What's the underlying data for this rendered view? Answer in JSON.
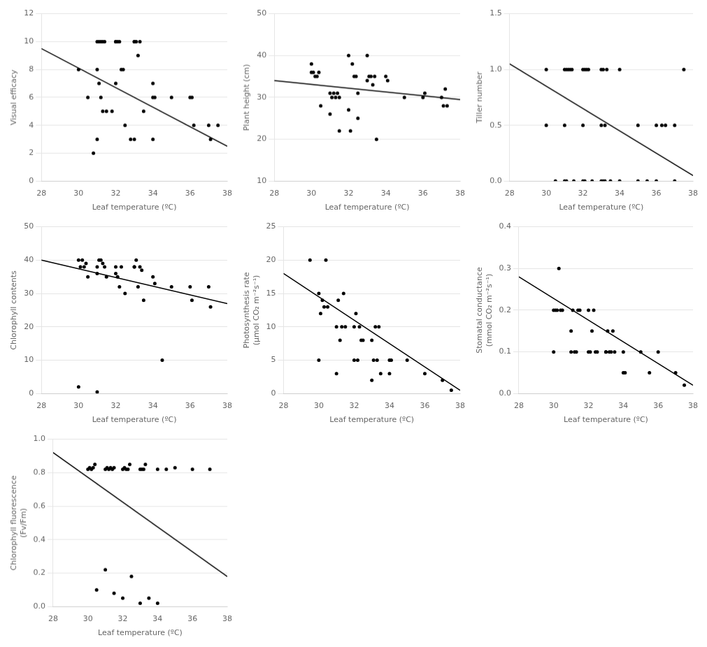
{
  "chart_data": [
    {
      "type": "scatter",
      "xlabel": "Leaf temperature (ºC)",
      "ylabel": "Visual efficacy",
      "xlim": [
        28,
        38
      ],
      "ylim": [
        0,
        12
      ],
      "xticks": [
        28,
        30,
        32,
        34,
        36,
        38
      ],
      "yticks": [
        0,
        2,
        4,
        6,
        8,
        10,
        12
      ],
      "grid": "y",
      "series": [
        {
          "type": "scatter",
          "color": "#000000",
          "x": [
            30.0,
            31.0,
            31.1,
            31.2,
            31.3,
            31.4,
            31.0,
            31.1,
            31.2,
            31.3,
            32.0,
            32.0,
            32.1,
            32.2,
            32.3,
            32.4,
            33.0,
            33.0,
            33.1,
            33.2,
            33.3,
            34.0,
            34.0,
            34.1,
            35.0,
            36.0,
            36.1,
            36.2,
            37.0,
            37.1,
            37.5,
            30.5,
            31.5,
            32.5,
            33.5,
            31.0,
            32.0,
            33.0,
            34.0,
            30.8,
            31.8,
            32.8
          ],
          "values": [
            8.0,
            10.0,
            10.0,
            10.0,
            10.0,
            10.0,
            8.0,
            7.0,
            6.0,
            5.0,
            10.0,
            10.0,
            10.0,
            10.0,
            8.0,
            8.0,
            10.0,
            10.0,
            10.0,
            9.0,
            10.0,
            6.0,
            7.0,
            6.0,
            6.0,
            6.0,
            6.0,
            4.0,
            4.0,
            3.0,
            4.0,
            6.0,
            5.0,
            4.0,
            5.0,
            3.0,
            7.0,
            3.0,
            3.0,
            2.0,
            5.0,
            3.0
          ]
        },
        {
          "type": "line",
          "color": "#000000",
          "x": [
            28,
            38
          ],
          "values": [
            9.5,
            2.5
          ]
        }
      ]
    },
    {
      "type": "scatter",
      "xlabel": "Leaf temperature (ºC)",
      "ylabel": "Plant height (cm)",
      "xlim": [
        28,
        38
      ],
      "ylim": [
        10,
        50
      ],
      "xticks": [
        28,
        30,
        32,
        34,
        36,
        38
      ],
      "yticks": [
        10,
        20,
        30,
        40,
        50
      ],
      "grid": "y",
      "series": [
        {
          "type": "scatter",
          "color": "#000000",
          "x": [
            30.0,
            30.1,
            30.2,
            30.3,
            30.4,
            30.5,
            31.0,
            31.1,
            31.2,
            31.3,
            31.4,
            31.5,
            32.0,
            32.1,
            32.2,
            32.3,
            32.4,
            32.5,
            33.0,
            33.1,
            33.2,
            33.3,
            33.4,
            34.0,
            34.1,
            35.0,
            36.0,
            36.1,
            37.0,
            37.1,
            37.2,
            37.3,
            31.0,
            31.5,
            32.5,
            33.0,
            33.5,
            30.0,
            32.0
          ],
          "values": [
            36.0,
            36.0,
            35.0,
            35.0,
            36.0,
            28.0,
            31.0,
            30.0,
            31.0,
            30.0,
            31.0,
            22.0,
            40.0,
            22.0,
            38.0,
            35.0,
            35.0,
            31.0,
            40.0,
            35.0,
            35.0,
            33.0,
            35.0,
            35.0,
            34.0,
            30.0,
            30.0,
            31.0,
            30.0,
            28.0,
            32.0,
            28.0,
            26.0,
            30.0,
            25.0,
            34.0,
            20.0,
            38.0,
            27.0
          ]
        },
        {
          "type": "line",
          "color": "#000000",
          "x": [
            28,
            38
          ],
          "values": [
            34.0,
            29.5
          ]
        }
      ]
    },
    {
      "type": "scatter",
      "xlabel": "Leaf temperature (ºC)",
      "ylabel": "Tiller number",
      "xlim": [
        28,
        38
      ],
      "ylim": [
        0,
        1.5
      ],
      "xticks": [
        28,
        30,
        32,
        34,
        36,
        38
      ],
      "yticks": [
        {
          "value": 0,
          "label": "0.0"
        },
        0.5,
        {
          "value": 1,
          "label": "1.0"
        },
        1.5
      ],
      "grid": "y",
      "series": [
        {
          "type": "scatter",
          "color": "#000000",
          "x": [
            30.0,
            31.0,
            31.1,
            31.2,
            31.3,
            31.4,
            32.0,
            32.1,
            32.2,
            32.3,
            33.0,
            33.1,
            33.2,
            33.3,
            34.0,
            35.0,
            36.0,
            37.0,
            37.5,
            30.5,
            31.5,
            32.5,
            33.5,
            31.0,
            31.1,
            32.0,
            32.1,
            33.0,
            33.1,
            33.2,
            30.0,
            31.0,
            32.0,
            33.0,
            34.0,
            35.0,
            36.0,
            37.0,
            36.5,
            36.3,
            35.5
          ],
          "values": [
            1.0,
            1.0,
            1.0,
            1.0,
            1.0,
            1.0,
            1.0,
            1.0,
            1.0,
            1.0,
            1.0,
            1.0,
            0.5,
            1.0,
            1.0,
            0.5,
            0.5,
            0.5,
            1.0,
            0.0,
            0.0,
            0.0,
            0.0,
            0.0,
            0.0,
            0.0,
            0.0,
            0.0,
            0.0,
            0.0,
            0.5,
            0.5,
            0.5,
            0.5,
            0.0,
            0.0,
            0.0,
            0.0,
            0.5,
            0.5,
            0.0
          ]
        },
        {
          "type": "line",
          "color": "#000000",
          "x": [
            28,
            38
          ],
          "values": [
            1.05,
            0.05
          ]
        }
      ]
    },
    {
      "type": "scatter",
      "xlabel": "Leaf temperature (ºC)",
      "ylabel": "Chlorophyll contents",
      "xlim": [
        28,
        38
      ],
      "ylim": [
        0,
        50
      ],
      "xticks": [
        28,
        30,
        32,
        34,
        36,
        38
      ],
      "yticks": [
        0,
        10,
        20,
        30,
        40,
        50
      ],
      "grid": "y",
      "series": [
        {
          "type": "scatter",
          "color": "#000000",
          "x": [
            30.0,
            30.1,
            30.2,
            30.3,
            30.4,
            31.0,
            31.1,
            31.2,
            31.3,
            31.4,
            32.0,
            32.1,
            32.2,
            32.3,
            33.0,
            33.1,
            33.2,
            33.3,
            33.4,
            34.0,
            34.1,
            35.0,
            36.0,
            36.1,
            37.0,
            37.1,
            31.5,
            32.5,
            33.5,
            30.5,
            32.0,
            31.0,
            33.0,
            34.5,
            30.0,
            31.0
          ],
          "values": [
            40.0,
            38.0,
            40.0,
            38.0,
            39.0,
            38.0,
            40.0,
            40.0,
            39.0,
            38.0,
            38.0,
            35.0,
            32.0,
            38.0,
            38.0,
            40.0,
            32.0,
            38.0,
            37.0,
            35.0,
            33.0,
            32.0,
            32.0,
            28.0,
            32.0,
            26.0,
            35.0,
            30.0,
            28.0,
            35.0,
            36.0,
            36.0,
            38.0,
            10.0,
            2.0,
            0.5
          ]
        },
        {
          "type": "line",
          "color": "#000000",
          "x": [
            28,
            38
          ],
          "values": [
            40.0,
            27.0
          ]
        }
      ]
    },
    {
      "type": "scatter",
      "xlabel": "Leaf temperature (ºC)",
      "ylabel": "Photosynthesis rate\n(μmol CO₂ m⁻²s⁻¹)",
      "xlim": [
        28,
        38
      ],
      "ylim": [
        0,
        25
      ],
      "xticks": [
        28,
        30,
        32,
        34,
        36,
        38
      ],
      "yticks": [
        0,
        5,
        10,
        15,
        20,
        25
      ],
      "grid": "y",
      "series": [
        {
          "type": "scatter",
          "color": "#000000",
          "x": [
            29.5,
            30.0,
            30.1,
            30.2,
            30.3,
            30.4,
            31.0,
            31.1,
            31.2,
            31.3,
            31.4,
            32.0,
            32.1,
            32.2,
            32.3,
            32.4,
            33.0,
            33.1,
            33.2,
            33.3,
            33.4,
            34.0,
            34.1,
            35.0,
            36.0,
            37.0,
            37.5,
            31.5,
            32.5,
            33.5,
            30.5,
            30.0,
            31.0,
            32.0,
            33.0,
            34.0
          ],
          "values": [
            20.0,
            15.0,
            12.0,
            14.0,
            13.0,
            20.0,
            10.0,
            14.0,
            8.0,
            10.0,
            15.0,
            10.0,
            12.0,
            5.0,
            10.0,
            8.0,
            8.0,
            5.0,
            10.0,
            5.0,
            10.0,
            5.0,
            5.0,
            5.0,
            3.0,
            2.0,
            0.5,
            10.0,
            8.0,
            3.0,
            13.0,
            5.0,
            3.0,
            5.0,
            2.0,
            3.0
          ]
        },
        {
          "type": "line",
          "color": "#000000",
          "x": [
            28,
            38
          ],
          "values": [
            18.0,
            0.5
          ]
        }
      ]
    },
    {
      "type": "scatter",
      "xlabel": "Leaf temperature (ºC)",
      "ylabel": "Stomatal conductance\n(mmol CO₂ m⁻²s⁻¹)",
      "xlim": [
        28,
        38
      ],
      "ylim": [
        0,
        0.4
      ],
      "xticks": [
        28,
        30,
        32,
        34,
        36,
        38
      ],
      "yticks": [
        {
          "value": 0,
          "label": "0.0"
        },
        0.1,
        0.2,
        0.3,
        0.4
      ],
      "grid": "y",
      "series": [
        {
          "type": "scatter",
          "color": "#000000",
          "x": [
            30.0,
            30.1,
            30.2,
            30.3,
            30.4,
            31.0,
            31.1,
            31.2,
            31.3,
            31.4,
            32.0,
            32.1,
            32.2,
            32.3,
            32.4,
            33.0,
            33.1,
            33.2,
            33.3,
            33.4,
            34.0,
            34.1,
            35.0,
            36.0,
            37.0,
            37.5,
            30.5,
            31.5,
            32.5,
            33.5,
            30.0,
            31.0,
            32.0,
            33.0,
            34.0,
            35.5
          ],
          "values": [
            0.2,
            0.2,
            0.2,
            0.3,
            0.2,
            0.15,
            0.2,
            0.1,
            0.1,
            0.2,
            0.2,
            0.1,
            0.15,
            0.2,
            0.1,
            0.1,
            0.15,
            0.1,
            0.1,
            0.15,
            0.1,
            0.05,
            0.1,
            0.1,
            0.05,
            0.02,
            0.2,
            0.2,
            0.1,
            0.1,
            0.1,
            0.1,
            0.1,
            0.1,
            0.05,
            0.05
          ]
        },
        {
          "type": "line",
          "color": "#000000",
          "x": [
            28,
            38
          ],
          "values": [
            0.28,
            0.02
          ]
        }
      ]
    },
    {
      "type": "scatter",
      "xlabel": "Leaf temperature (ºC)",
      "ylabel": "Chlorophyll fluorescence\n(Fv/Fm)",
      "xlim": [
        28,
        38
      ],
      "ylim": [
        0,
        1
      ],
      "xticks": [
        28,
        30,
        32,
        34,
        36,
        38
      ],
      "yticks": [
        {
          "value": 0,
          "label": "0.0"
        },
        0.2,
        0.4,
        0.6,
        0.8,
        {
          "value": 1.0,
          "label": "1.0"
        }
      ],
      "grid": "y",
      "series": [
        {
          "type": "scatter",
          "color": "#000000",
          "x": [
            30.0,
            30.1,
            30.2,
            30.3,
            30.4,
            31.0,
            31.1,
            31.2,
            31.3,
            31.4,
            31.5,
            32.0,
            32.1,
            32.2,
            32.3,
            32.4,
            33.0,
            33.1,
            33.2,
            33.3,
            34.0,
            34.5,
            35.0,
            36.0,
            37.0,
            31.0,
            32.5,
            33.5,
            31.5,
            30.5,
            32.0,
            33.0,
            34.0
          ],
          "values": [
            0.82,
            0.83,
            0.82,
            0.83,
            0.85,
            0.82,
            0.83,
            0.82,
            0.83,
            0.82,
            0.83,
            0.82,
            0.83,
            0.82,
            0.82,
            0.85,
            0.82,
            0.82,
            0.82,
            0.85,
            0.82,
            0.82,
            0.83,
            0.82,
            0.82,
            0.22,
            0.18,
            0.05,
            0.08,
            0.1,
            0.05,
            0.02,
            0.02
          ]
        },
        {
          "type": "line",
          "color": "#000000",
          "x": [
            28,
            38
          ],
          "values": [
            0.92,
            0.18
          ]
        }
      ]
    }
  ]
}
